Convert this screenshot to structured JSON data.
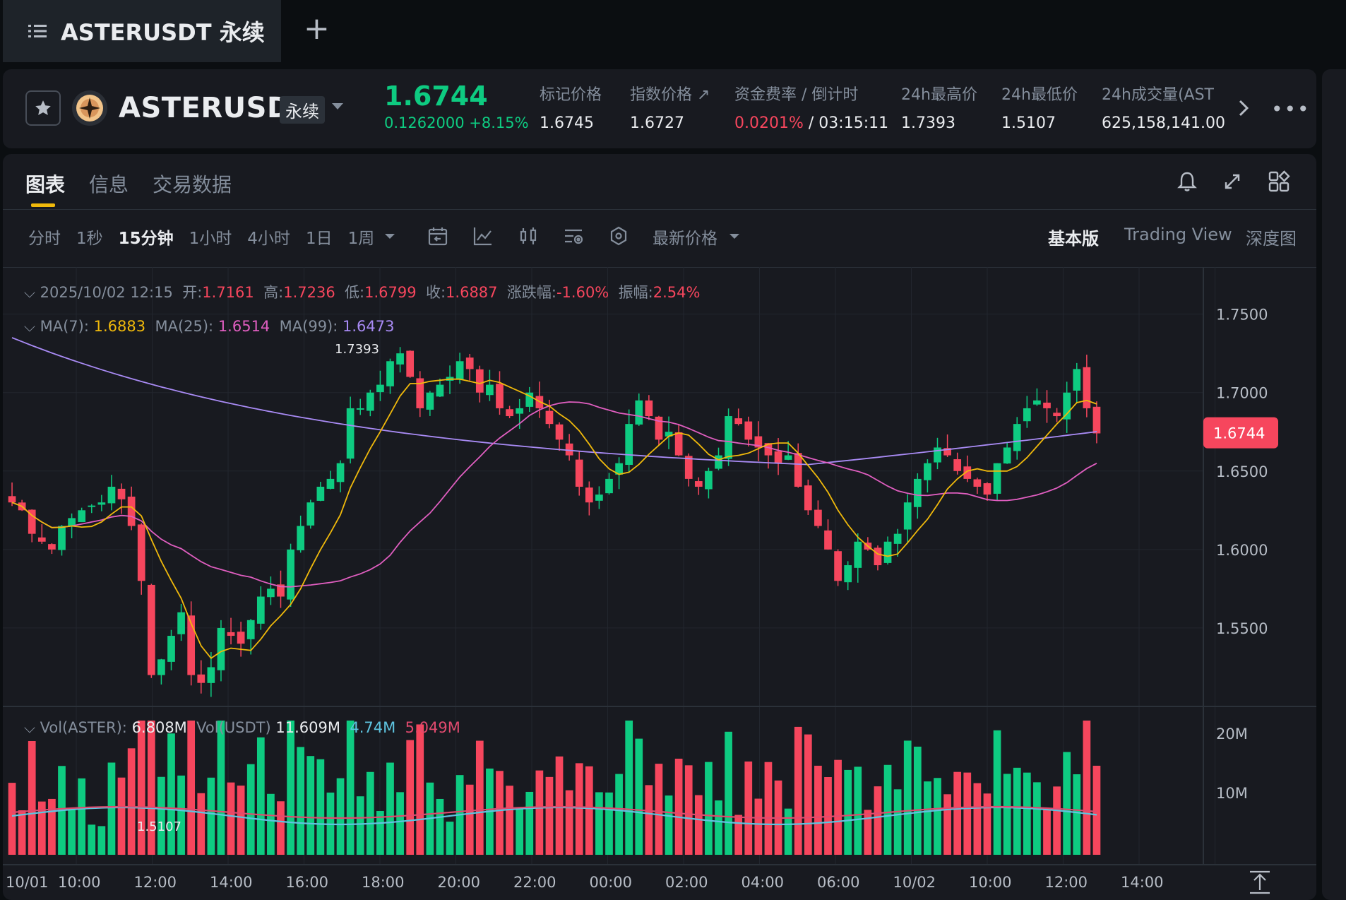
{
  "tab": {
    "title": "ASTERUSDT 永续"
  },
  "ticker": {
    "symbol": "ASTERUSDT",
    "badge": "永续",
    "last_price": "1.6744",
    "change": "0.1262000 +8.15%",
    "stats": [
      {
        "label": "标记价格",
        "value": "1.6745"
      },
      {
        "label": "指数价格 ↗",
        "value": "1.6727"
      },
      {
        "label": "资金费率 / 倒计时",
        "value_red": "0.0201%",
        "value_rest": " / 03:15:11"
      },
      {
        "label": "24h最高价",
        "value": "1.7393"
      },
      {
        "label": "24h最低价",
        "value": "1.5107"
      },
      {
        "label": "24h成交量(AST",
        "value": "625,158,141.00"
      }
    ]
  },
  "chart_tabs": [
    "图表",
    "信息",
    "交易数据"
  ],
  "intervals": [
    "分时",
    "1秒",
    "15分钟",
    "1小时",
    "4小时",
    "1日",
    "1周"
  ],
  "selected_interval": "15分钟",
  "latest_price_label": "最新价格",
  "views": [
    "基本版",
    "Trading View",
    "深度图"
  ],
  "legend": {
    "date": "2025/10/02 12:15",
    "open_label": "开:",
    "open": "1.7161",
    "high_label": "高:",
    "high": "1.7236",
    "low_label": "低:",
    "low": "1.6799",
    "close_label": "收:",
    "close": "1.6887",
    "chg_label": "涨跌幅:",
    "chg": "-1.60%",
    "amp_label": "振幅:",
    "amp": "2.54%",
    "ma7_label": "MA(7):",
    "ma7": "1.6883",
    "ma25_label": "MA(25):",
    "ma25": "1.6514",
    "ma99_label": "MA(99):",
    "ma99": "1.6473",
    "vol_label": "Vol(ASTER):",
    "vol": "6.808M",
    "volu_label": "Vol(USDT)",
    "volu": "11.609M",
    "vma1": "4.74M",
    "vma2": "5.049M"
  },
  "colors": {
    "up": "#0ecb81",
    "down": "#f6465d",
    "ma7": "#f0b90b",
    "ma25": "#e05ec0",
    "ma99": "#a98bf5",
    "vol_ma1": "#5ec4e0",
    "vol_ma2": "#e04a6e"
  },
  "chart_data": {
    "type": "candlestick",
    "interval": "15m",
    "y_ticks": [
      "1.7500",
      "1.7000",
      "1.6500",
      "1.6000",
      "1.5500"
    ],
    "ylim": [
      1.5,
      1.78
    ],
    "current_price": "1.6744",
    "high_marker": "1.7393",
    "low_marker": "1.5107",
    "x_ticks": [
      "10/01",
      "10:00",
      "12:00",
      "14:00",
      "16:00",
      "18:00",
      "20:00",
      "22:00",
      "00:00",
      "02:00",
      "04:00",
      "06:00",
      "10/02",
      "10:00",
      "12:00",
      "14:00"
    ],
    "vol_ticks": [
      "20M",
      "10M"
    ],
    "close_path": [
      1.63,
      1.625,
      1.61,
      1.605,
      1.6,
      1.615,
      1.62,
      1.625,
      1.628,
      1.63,
      1.64,
      1.632,
      1.615,
      1.58,
      1.52,
      1.53,
      1.545,
      1.56,
      1.52,
      1.515,
      1.525,
      1.55,
      1.545,
      1.54,
      1.555,
      1.57,
      1.575,
      1.57,
      1.6,
      1.615,
      1.63,
      1.64,
      1.645,
      1.655,
      1.69,
      1.69,
      1.7,
      1.705,
      1.72,
      1.725,
      1.71,
      1.69,
      1.7,
      1.705,
      1.71,
      1.72,
      1.715,
      1.7,
      1.705,
      1.69,
      1.685,
      1.69,
      1.7,
      1.69,
      1.68,
      1.67,
      1.66,
      1.64,
      1.63,
      1.635,
      1.645,
      1.655,
      1.68,
      1.695,
      1.685,
      1.67,
      1.675,
      1.66,
      1.645,
      1.64,
      1.65,
      1.66,
      1.685,
      1.68,
      1.67,
      1.665,
      1.66,
      1.655,
      1.66,
      1.64,
      1.625,
      1.615,
      1.6,
      1.58,
      1.59,
      1.605,
      1.6,
      1.59,
      1.605,
      1.61,
      1.63,
      1.645,
      1.655,
      1.665,
      1.66,
      1.65,
      1.645,
      1.64,
      1.635,
      1.655,
      1.665,
      1.68,
      1.69,
      1.695,
      1.69,
      1.685,
      1.7,
      1.715,
      1.69,
      1.674
    ]
  }
}
